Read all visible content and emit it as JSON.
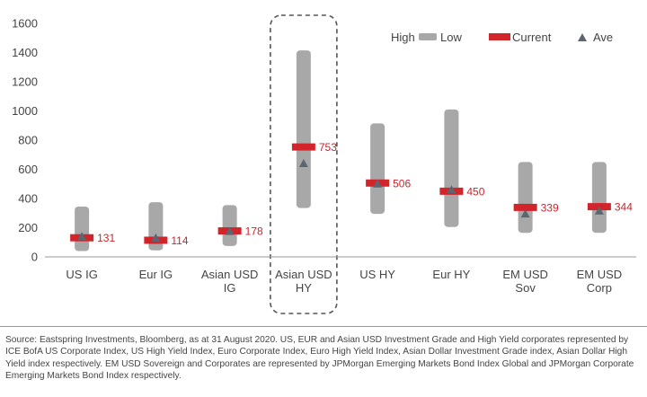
{
  "chart_data": {
    "type": "range",
    "categories": [
      {
        "lines": [
          "US IG"
        ]
      },
      {
        "lines": [
          "Eur IG"
        ]
      },
      {
        "lines": [
          "Asian USD",
          "IG"
        ]
      },
      {
        "lines": [
          "Asian USD",
          "HY"
        ]
      },
      {
        "lines": [
          "US HY"
        ]
      },
      {
        "lines": [
          "Eur HY"
        ]
      },
      {
        "lines": [
          "EM USD",
          "Sov"
        ]
      },
      {
        "lines": [
          "EM USD",
          "Corp"
        ]
      }
    ],
    "high": [
      345,
      375,
      355,
      1415,
      915,
      1010,
      650,
      650
    ],
    "low": [
      40,
      45,
      75,
      335,
      295,
      205,
      165,
      165
    ],
    "current": [
      131,
      114,
      178,
      753,
      506,
      450,
      339,
      344
    ],
    "average": [
      140,
      130,
      175,
      640,
      500,
      460,
      295,
      315
    ],
    "current_labels": [
      "131",
      "114",
      "178",
      "753",
      "506",
      "450",
      "339",
      "344"
    ],
    "highlighted_category_index": 3,
    "yticks": [
      "0",
      "200",
      "400",
      "600",
      "800",
      "1000",
      "1200",
      "1400",
      "1600"
    ],
    "ylim": [
      0,
      1600
    ],
    "legend": {
      "high_low_left": "High",
      "high_low_right": "Low",
      "current": "Current",
      "average": "Ave"
    },
    "colors": {
      "range": "#a8a8a8",
      "current": "#d2242b",
      "average": "#5c6670",
      "axis": "#999999",
      "label": "#c9252c"
    }
  },
  "footer": {
    "source": "Source: Eastspring Investments, Bloomberg, as at 31 August 2020. US, EUR and Asian USD Investment Grade and High Yield corporates represented by ICE BofA US Corporate Index, US High Yield Index, Euro Corporate Index, Euro High Yield Index, Asian Dollar Investment Grade index, Asian Dollar High Yield index respectively. EM USD Sovereign and Corporates are represented by JPMorgan Emerging Markets Bond Index Global and JPMorgan Corporate Emerging Markets Bond Index respectively."
  }
}
